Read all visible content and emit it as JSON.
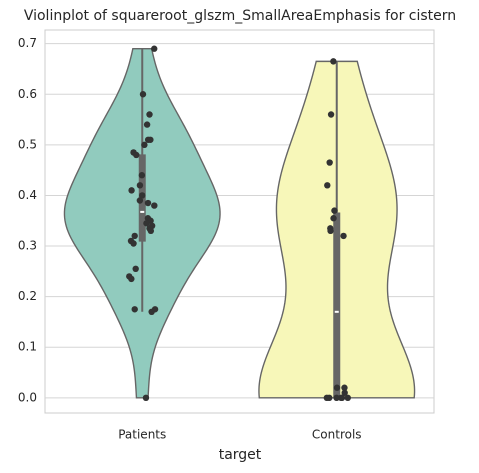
{
  "chart_data": {
    "type": "violin",
    "title": "Violinplot of squareroot_glszm_SmallAreaEmphasis for cistern",
    "xlabel": "target",
    "categories": [
      "Patients",
      "Controls"
    ],
    "series": [
      {
        "color": "#91cbbe",
        "values": [
          0.69,
          0.6,
          0.56,
          0.54,
          0.51,
          0.51,
          0.5,
          0.485,
          0.48,
          0.44,
          0.42,
          0.41,
          0.4,
          0.39,
          0.385,
          0.38,
          0.355,
          0.35,
          0.345,
          0.34,
          0.335,
          0.33,
          0.32,
          0.31,
          0.305,
          0.255,
          0.24,
          0.235,
          0.175,
          0.175,
          0.17,
          0.0
        ]
      },
      {
        "color": "#f7f7b9",
        "values": [
          0.665,
          0.56,
          0.465,
          0.42,
          0.37,
          0.355,
          0.335,
          0.33,
          0.32,
          0.02,
          0.02,
          0.01,
          0.0,
          0.0,
          0.0,
          0.0,
          0.0,
          0.0
        ]
      }
    ],
    "point_color": "#333333",
    "ylim": [
      -0.03,
      0.727
    ],
    "yticks": [
      {
        "value": 0,
        "label": "0.0"
      },
      0.1,
      0.2,
      0.3,
      0.4,
      0.5,
      0.6,
      0.7
    ],
    "grid": true
  }
}
